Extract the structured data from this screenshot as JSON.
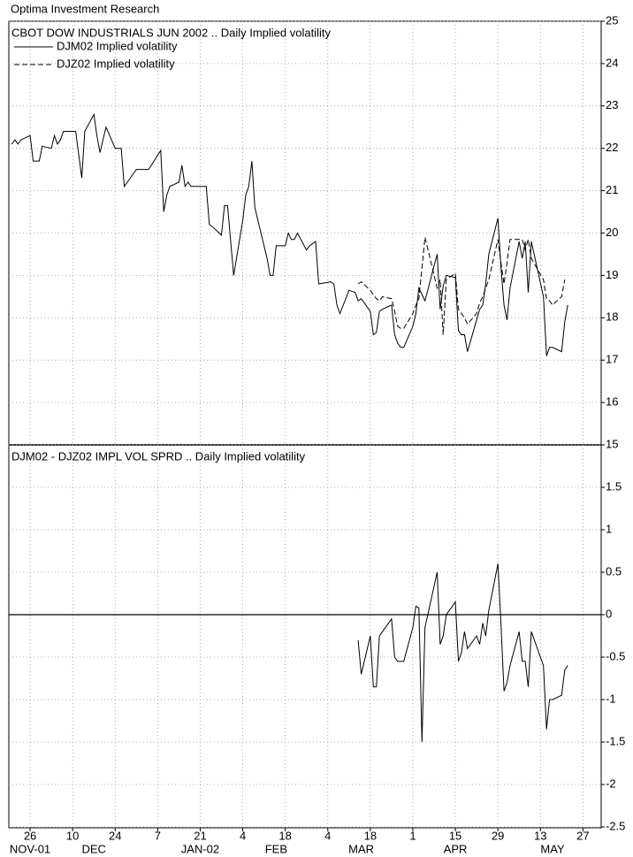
{
  "header": "Optima Investment Research",
  "chart_data": [
    {
      "type": "line",
      "title": "CBOT DOW INDUSTRIALS JUN 2002 .. Daily Implied volatility",
      "xlim": [
        "2001-11-19",
        "2002-06-02"
      ],
      "ylim": [
        15,
        25
      ],
      "yticks": [
        15,
        16,
        17,
        18,
        19,
        20,
        21,
        22,
        23,
        24,
        25
      ],
      "grid": true,
      "legend": "top-left",
      "series": [
        {
          "name": "DJM02 Implied volatility",
          "color": "#000000",
          "style": "solid",
          "x": [
            "2001-11-20",
            "2001-11-21",
            "2001-11-22",
            "2001-11-23",
            "2001-11-26",
            "2001-11-27",
            "2001-11-29",
            "2001-11-30",
            "2001-12-03",
            "2001-12-04",
            "2001-12-05",
            "2001-12-06",
            "2001-12-07",
            "2001-12-11",
            "2001-12-13",
            "2001-12-14",
            "2001-12-17",
            "2001-12-18",
            "2001-12-19",
            "2001-12-21",
            "2001-12-24",
            "2001-12-26",
            "2001-12-27",
            "2001-12-28",
            "2001-12-31",
            "2002-01-04",
            "2002-01-08",
            "2002-01-09",
            "2002-01-10",
            "2002-01-11",
            "2002-01-14",
            "2002-01-15",
            "2002-01-16",
            "2002-01-17",
            "2002-01-18",
            "2002-01-23",
            "2002-01-24",
            "2002-01-25",
            "2002-01-28",
            "2002-01-29",
            "2002-01-30",
            "2002-02-01",
            "2002-02-04",
            "2002-02-05",
            "2002-02-06",
            "2002-02-07",
            "2002-02-08",
            "2002-02-12",
            "2002-02-13",
            "2002-02-14",
            "2002-02-15",
            "2002-02-18",
            "2002-02-19",
            "2002-02-20",
            "2002-02-21",
            "2002-02-22",
            "2002-02-25",
            "2002-02-26",
            "2002-02-28",
            "2002-03-01",
            "2002-03-05",
            "2002-03-06",
            "2002-03-07",
            "2002-03-08",
            "2002-03-11",
            "2002-03-13",
            "2002-03-14",
            "2002-03-15",
            "2002-03-18",
            "2002-03-19",
            "2002-03-20",
            "2002-03-21",
            "2002-03-22",
            "2002-03-25",
            "2002-03-26",
            "2002-03-27",
            "2002-03-28",
            "2002-03-29",
            "2002-04-01",
            "2002-04-02",
            "2002-04-03",
            "2002-04-04",
            "2002-04-05",
            "2002-04-09",
            "2002-04-10",
            "2002-04-11",
            "2002-04-12",
            "2002-04-15",
            "2002-04-16",
            "2002-04-17",
            "2002-04-18",
            "2002-04-19",
            "2002-04-22",
            "2002-04-23",
            "2002-04-24",
            "2002-04-25",
            "2002-04-26",
            "2002-04-29",
            "2002-04-30",
            "2002-05-01",
            "2002-05-02",
            "2002-05-03",
            "2002-05-06",
            "2002-05-07",
            "2002-05-08",
            "2002-05-09",
            "2002-05-10",
            "2002-05-14",
            "2002-05-15",
            "2002-05-16",
            "2002-05-17",
            "2002-05-20",
            "2002-05-21",
            "2002-05-22"
          ],
          "values": [
            22.1,
            22.2,
            22.1,
            22.2,
            22.3,
            21.7,
            21.7,
            22.05,
            22.0,
            22.3,
            22.1,
            22.2,
            22.4,
            22.4,
            21.3,
            22.4,
            22.8,
            22.3,
            21.9,
            22.5,
            22.0,
            22.0,
            21.1,
            21.2,
            21.5,
            21.5,
            21.95,
            20.5,
            20.9,
            21.1,
            21.2,
            21.6,
            21.1,
            21.2,
            21.1,
            21.1,
            20.2,
            20.15,
            19.95,
            20.65,
            20.65,
            19.0,
            20.3,
            20.9,
            21.1,
            21.7,
            20.6,
            19.4,
            19.0,
            19.0,
            19.7,
            19.7,
            20.0,
            19.85,
            19.85,
            20.0,
            19.6,
            19.7,
            19.8,
            18.8,
            18.85,
            18.8,
            18.3,
            18.1,
            18.65,
            18.6,
            18.4,
            18.45,
            18.15,
            17.6,
            17.65,
            18.15,
            18.2,
            18.3,
            17.6,
            17.4,
            17.3,
            17.3,
            17.8,
            18.1,
            18.7,
            18.55,
            18.4,
            19.5,
            18.2,
            18.75,
            19.0,
            18.95,
            17.7,
            17.6,
            17.6,
            17.2,
            17.95,
            18.2,
            18.3,
            18.8,
            19.5,
            20.35,
            19.2,
            18.3,
            17.95,
            18.7,
            19.8,
            19.4,
            19.8,
            18.6,
            19.8,
            18.5,
            17.1,
            17.3,
            17.3,
            17.2,
            17.9,
            18.3
          ]
        },
        {
          "name": "DJZ02 Implied volatility",
          "color": "#000000",
          "style": "dashed",
          "x": [
            "2002-03-14",
            "2002-03-15",
            "2002-03-18",
            "2002-03-19",
            "2002-03-20",
            "2002-03-21",
            "2002-03-22",
            "2002-03-25",
            "2002-03-26",
            "2002-03-27",
            "2002-03-28",
            "2002-03-29",
            "2002-04-01",
            "2002-04-02",
            "2002-04-03",
            "2002-04-05",
            "2002-04-09",
            "2002-04-10",
            "2002-04-11",
            "2002-04-12",
            "2002-04-15",
            "2002-04-16",
            "2002-04-17",
            "2002-04-18",
            "2002-04-19",
            "2002-04-22",
            "2002-04-23",
            "2002-04-24",
            "2002-04-25",
            "2002-04-26",
            "2002-04-29",
            "2002-04-30",
            "2002-05-01",
            "2002-05-02",
            "2002-05-03",
            "2002-05-06",
            "2002-05-07",
            "2002-05-08",
            "2002-05-09",
            "2002-05-10",
            "2002-05-14",
            "2002-05-15",
            "2002-05-16",
            "2002-05-17",
            "2002-05-20",
            "2002-05-21"
          ],
          "values": [
            18.8,
            18.85,
            18.65,
            18.55,
            18.45,
            18.4,
            18.5,
            18.45,
            18.15,
            17.8,
            17.75,
            17.75,
            18.1,
            18.3,
            18.45,
            19.9,
            18.7,
            18.9,
            17.6,
            18.9,
            19.05,
            18.2,
            18.1,
            18.0,
            17.85,
            18.1,
            18.35,
            18.5,
            18.7,
            18.9,
            19.85,
            19.3,
            18.8,
            19.3,
            19.85,
            19.85,
            19.85,
            19.6,
            19.85,
            19.4,
            18.9,
            18.45,
            18.4,
            18.3,
            18.5,
            18.9
          ]
        }
      ]
    },
    {
      "type": "line",
      "title": "DJM02 - DJZ02 IMPL VOL SPRD .. Daily Implied volatility",
      "xlim": [
        "2001-11-19",
        "2002-06-02"
      ],
      "ylim": [
        -2.5,
        2
      ],
      "yticks": [
        -2.5,
        -2,
        -1.5,
        -1,
        -0.5,
        0,
        0.5,
        1,
        1.5
      ],
      "grid": true,
      "reference_line": 0,
      "xticks": [
        {
          "value": "2001-11-26",
          "label": "26"
        },
        {
          "value": "2001-12-10",
          "label": "10"
        },
        {
          "value": "2001-12-24",
          "label": "24"
        },
        {
          "value": "2002-01-07",
          "label": "7"
        },
        {
          "value": "2002-01-21",
          "label": "21"
        },
        {
          "value": "2002-02-04",
          "label": "4"
        },
        {
          "value": "2002-02-18",
          "label": "18"
        },
        {
          "value": "2002-03-04",
          "label": "4"
        },
        {
          "value": "2002-03-18",
          "label": "18"
        },
        {
          "value": "2002-04-01",
          "label": "1"
        },
        {
          "value": "2002-04-15",
          "label": "15"
        },
        {
          "value": "2002-04-29",
          "label": "29"
        },
        {
          "value": "2002-05-13",
          "label": "13"
        },
        {
          "value": "2002-05-27",
          "label": "27"
        }
      ],
      "xmonths": [
        {
          "value": "2001-11-26",
          "label": "NOV-01"
        },
        {
          "value": "2001-12-17",
          "label": "DEC"
        },
        {
          "value": "2002-01-21",
          "label": "JAN-02"
        },
        {
          "value": "2002-02-15",
          "label": "FEB"
        },
        {
          "value": "2002-03-15",
          "label": "MAR"
        },
        {
          "value": "2002-04-15",
          "label": "APR"
        },
        {
          "value": "2002-05-17",
          "label": "MAY"
        }
      ],
      "series": [
        {
          "name": "DJM02 - DJZ02",
          "color": "#000000",
          "style": "solid",
          "x": [
            "2002-03-14",
            "2002-03-15",
            "2002-03-18",
            "2002-03-19",
            "2002-03-20",
            "2002-03-21",
            "2002-03-22",
            "2002-03-25",
            "2002-03-26",
            "2002-03-27",
            "2002-03-28",
            "2002-03-29",
            "2002-04-01",
            "2002-04-02",
            "2002-04-03",
            "2002-04-04",
            "2002-04-05",
            "2002-04-09",
            "2002-04-10",
            "2002-04-11",
            "2002-04-12",
            "2002-04-15",
            "2002-04-16",
            "2002-04-17",
            "2002-04-18",
            "2002-04-19",
            "2002-04-22",
            "2002-04-23",
            "2002-04-24",
            "2002-04-25",
            "2002-04-26",
            "2002-04-29",
            "2002-04-30",
            "2002-05-01",
            "2002-05-02",
            "2002-05-03",
            "2002-05-06",
            "2002-05-07",
            "2002-05-08",
            "2002-05-09",
            "2002-05-10",
            "2002-05-14",
            "2002-05-15",
            "2002-05-16",
            "2002-05-17",
            "2002-05-20",
            "2002-05-21",
            "2002-05-22"
          ],
          "values": [
            -0.3,
            -0.7,
            -0.25,
            -0.85,
            -0.85,
            -0.25,
            -0.2,
            -0.05,
            -0.5,
            -0.55,
            -0.55,
            -0.55,
            -0.15,
            0.1,
            0.08,
            -1.5,
            -0.15,
            0.5,
            -0.35,
            -0.25,
            0.0,
            0.15,
            -0.55,
            -0.45,
            -0.2,
            -0.4,
            -0.25,
            -0.35,
            -0.1,
            -0.25,
            0.05,
            0.6,
            -0.1,
            -0.9,
            -0.8,
            -0.6,
            -0.2,
            -0.55,
            -0.55,
            -0.85,
            -0.2,
            -0.6,
            -1.35,
            -1.0,
            -1.0,
            -0.95,
            -0.65,
            -0.6
          ]
        }
      ]
    }
  ]
}
